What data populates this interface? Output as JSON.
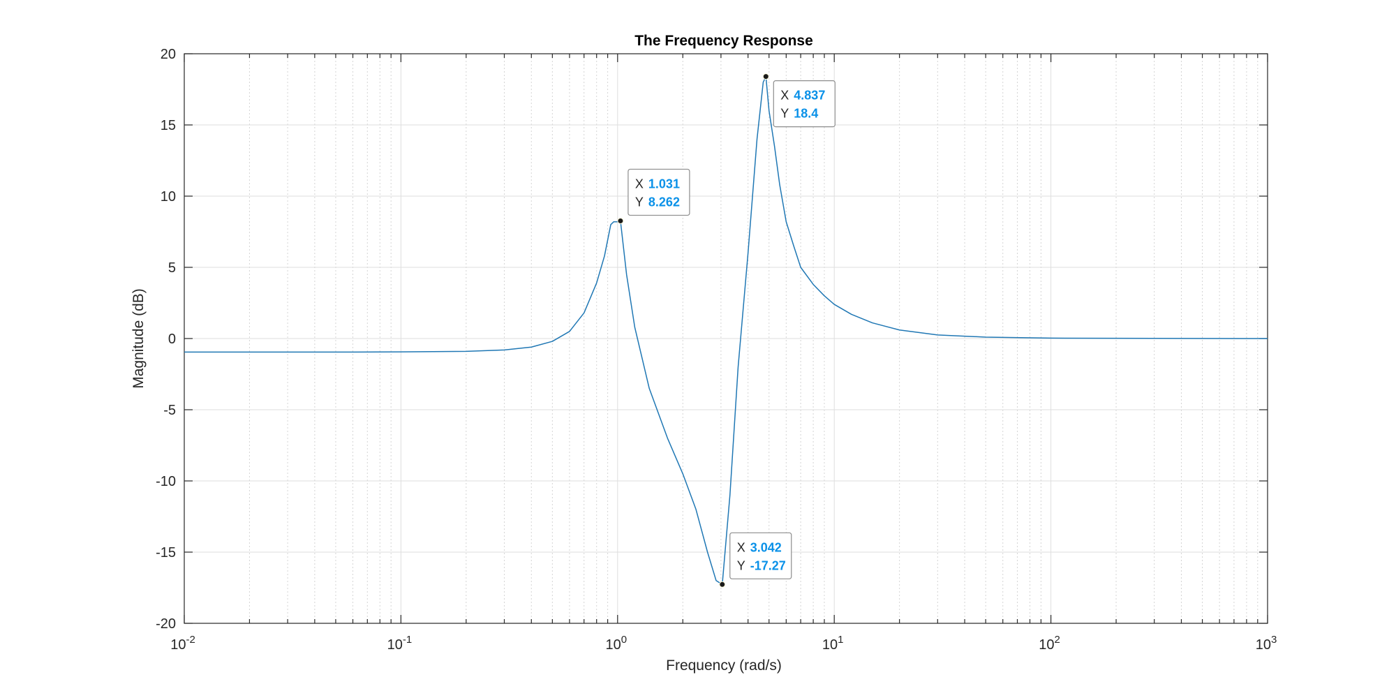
{
  "chart_data": {
    "type": "line",
    "title": "The Frequency Response",
    "xlabel": "Frequency (rad/s)",
    "ylabel": "Magnitude (dB)",
    "xscale": "log",
    "xlim": [
      0.01,
      1000
    ],
    "ylim": [
      -20,
      20
    ],
    "yticks": [
      -20,
      -15,
      -10,
      -5,
      0,
      5,
      10,
      15,
      20
    ],
    "ytick_labels": [
      "-20",
      "-15",
      "-10",
      "-5",
      "0",
      "5",
      "10",
      "15",
      "20"
    ],
    "xticks": [
      0.01,
      0.1,
      1,
      10,
      100,
      1000
    ],
    "xtick_labels": [
      {
        "base": "10",
        "exp": "-2"
      },
      {
        "base": "10",
        "exp": "-1"
      },
      {
        "base": "10",
        "exp": "0"
      },
      {
        "base": "10",
        "exp": "1"
      },
      {
        "base": "10",
        "exp": "2"
      },
      {
        "base": "10",
        "exp": "3"
      }
    ],
    "grid": true,
    "minor_grid": true,
    "line_color": "#1f77b4",
    "datatip_value_color": "#0a91e8",
    "series": [
      {
        "x": [
          0.01,
          0.05,
          0.1,
          0.2,
          0.3,
          0.4,
          0.5,
          0.6,
          0.7,
          0.8,
          0.87,
          0.93,
          0.96,
          1.0,
          1.031,
          1.1,
          1.2,
          1.4,
          1.7,
          2.0,
          2.3,
          2.6,
          2.85,
          3.042,
          3.3,
          3.6,
          4.0,
          4.4,
          4.7,
          4.837,
          5.0,
          5.3,
          5.6,
          6.0,
          6.5,
          7.0,
          8.0,
          9.0,
          10,
          12,
          15,
          20,
          30,
          50,
          100,
          300,
          1000
        ],
        "y": [
          -0.95,
          -0.95,
          -0.94,
          -0.9,
          -0.8,
          -0.6,
          -0.2,
          0.5,
          1.8,
          3.9,
          5.8,
          8.0,
          8.2,
          8.2,
          8.262,
          4.5,
          0.8,
          -3.5,
          -7.0,
          -9.5,
          -12.0,
          -15.0,
          -17.0,
          -17.27,
          -11.0,
          -2.0,
          6.0,
          14.0,
          18.0,
          18.4,
          16.0,
          13.5,
          10.8,
          8.2,
          6.5,
          5.0,
          3.8,
          3.0,
          2.4,
          1.7,
          1.1,
          0.6,
          0.25,
          0.1,
          0.03,
          0.01,
          0.0
        ]
      }
    ],
    "datatips": [
      {
        "x_label": "X",
        "y_label": "Y",
        "x": 1.031,
        "y": 8.262,
        "x_text": "1.031",
        "y_text": "8.262",
        "placement": "upper-right"
      },
      {
        "x_label": "X",
        "y_label": "Y",
        "x": 3.042,
        "y": -17.27,
        "x_text": "3.042",
        "y_text": "-17.27",
        "placement": "upper-right"
      },
      {
        "x_label": "X",
        "y_label": "Y",
        "x": 4.837,
        "y": 18.4,
        "x_text": "4.837",
        "y_text": "18.4",
        "placement": "lower-right"
      }
    ]
  }
}
